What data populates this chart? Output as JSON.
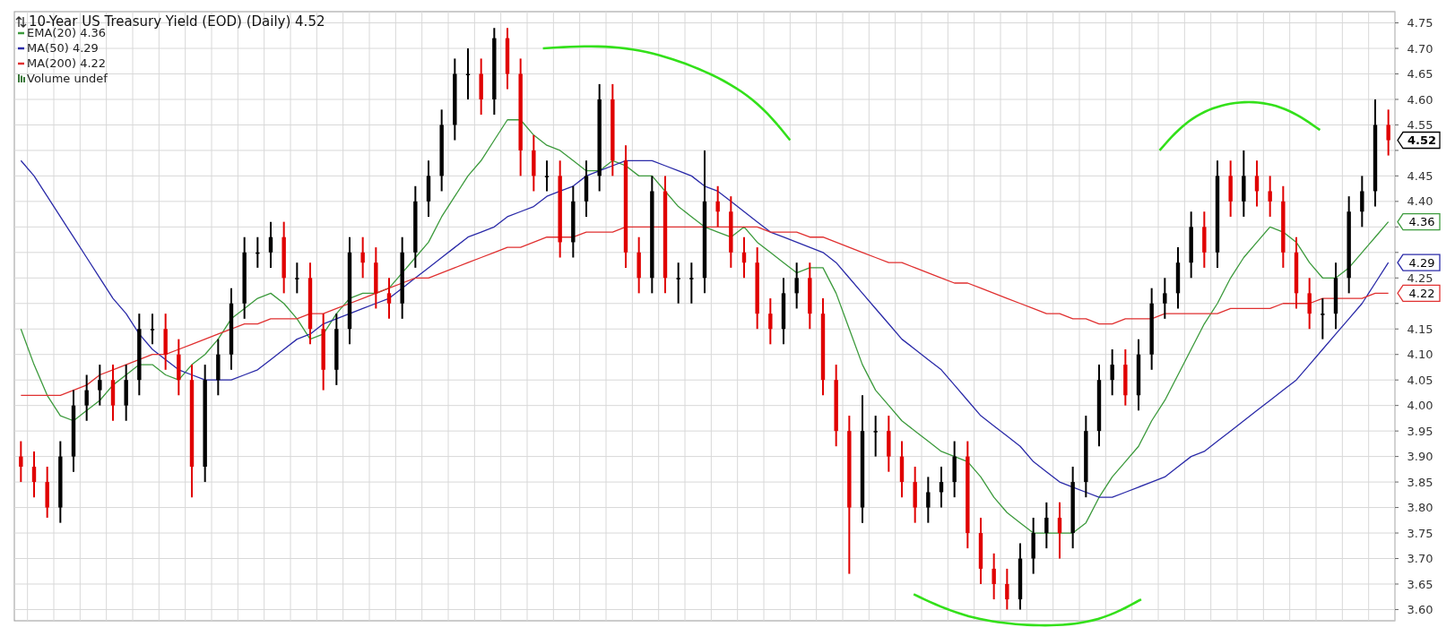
{
  "chart_data": {
    "type": "candlestick",
    "title": "10-Year US Treasury Yield (EOD) (Daily) 4.52",
    "categories": [
      null,
      null,
      null,
      null,
      null,
      null,
      null,
      null,
      null,
      null,
      null,
      null,
      null,
      null,
      null,
      null,
      null,
      null,
      null,
      null,
      null,
      null,
      null,
      null,
      null,
      null,
      null,
      null,
      null,
      null,
      null,
      null,
      null,
      null,
      null,
      null,
      null,
      null,
      null,
      null,
      null,
      null,
      null,
      null,
      null,
      null,
      null,
      null,
      null,
      null,
      null,
      null,
      null,
      null,
      null,
      null,
      null,
      null,
      null,
      null,
      null,
      null,
      null,
      null,
      null,
      null,
      null,
      null,
      null,
      null,
      null,
      null,
      null,
      null,
      null,
      null,
      null,
      null,
      null,
      null,
      null,
      null,
      null,
      null,
      null,
      null,
      null,
      null,
      null,
      null,
      null,
      null,
      null,
      null,
      null,
      null,
      null,
      null,
      null,
      null,
      null,
      null,
      null,
      null,
      null
    ],
    "ohlc": [
      [
        3.9,
        3.93,
        3.85,
        3.88
      ],
      [
        3.88,
        3.91,
        3.82,
        3.85
      ],
      [
        3.85,
        3.88,
        3.78,
        3.8
      ],
      [
        3.8,
        3.93,
        3.77,
        3.9
      ],
      [
        3.9,
        4.03,
        3.87,
        4.0
      ],
      [
        4.0,
        4.06,
        3.97,
        4.03
      ],
      [
        4.03,
        4.08,
        4.0,
        4.05
      ],
      [
        4.05,
        4.08,
        3.97,
        4.0
      ],
      [
        4.0,
        4.08,
        3.97,
        4.05
      ],
      [
        4.05,
        4.18,
        4.02,
        4.15
      ],
      [
        4.15,
        4.18,
        4.12,
        4.15
      ],
      [
        4.15,
        4.18,
        4.07,
        4.1
      ],
      [
        4.1,
        4.13,
        4.02,
        4.05
      ],
      [
        4.05,
        4.08,
        3.82,
        3.88
      ],
      [
        3.88,
        4.08,
        3.85,
        4.05
      ],
      [
        4.05,
        4.13,
        4.02,
        4.1
      ],
      [
        4.1,
        4.23,
        4.07,
        4.2
      ],
      [
        4.2,
        4.33,
        4.17,
        4.3
      ],
      [
        4.3,
        4.33,
        4.27,
        4.3
      ],
      [
        4.3,
        4.36,
        4.27,
        4.33
      ],
      [
        4.33,
        4.36,
        4.22,
        4.25
      ],
      [
        4.25,
        4.28,
        4.22,
        4.25
      ],
      [
        4.25,
        4.28,
        4.12,
        4.15
      ],
      [
        4.15,
        4.18,
        4.03,
        4.07
      ],
      [
        4.07,
        4.18,
        4.04,
        4.15
      ],
      [
        4.15,
        4.33,
        4.12,
        4.3
      ],
      [
        4.3,
        4.33,
        4.25,
        4.28
      ],
      [
        4.28,
        4.31,
        4.19,
        4.22
      ],
      [
        4.22,
        4.25,
        4.17,
        4.2
      ],
      [
        4.2,
        4.33,
        4.17,
        4.3
      ],
      [
        4.3,
        4.43,
        4.27,
        4.4
      ],
      [
        4.4,
        4.48,
        4.37,
        4.45
      ],
      [
        4.45,
        4.58,
        4.42,
        4.55
      ],
      [
        4.55,
        4.68,
        4.52,
        4.65
      ],
      [
        4.65,
        4.7,
        4.6,
        4.65
      ],
      [
        4.65,
        4.68,
        4.57,
        4.6
      ],
      [
        4.6,
        4.74,
        4.57,
        4.72
      ],
      [
        4.72,
        4.74,
        4.62,
        4.65
      ],
      [
        4.65,
        4.68,
        4.45,
        4.5
      ],
      [
        4.5,
        4.53,
        4.42,
        4.45
      ],
      [
        4.45,
        4.48,
        4.42,
        4.45
      ],
      [
        4.45,
        4.48,
        4.29,
        4.32
      ],
      [
        4.32,
        4.43,
        4.29,
        4.4
      ],
      [
        4.4,
        4.48,
        4.37,
        4.45
      ],
      [
        4.45,
        4.63,
        4.42,
        4.6
      ],
      [
        4.6,
        4.63,
        4.45,
        4.48
      ],
      [
        4.48,
        4.51,
        4.27,
        4.3
      ],
      [
        4.3,
        4.33,
        4.22,
        4.25
      ],
      [
        4.25,
        4.45,
        4.22,
        4.42
      ],
      [
        4.42,
        4.45,
        4.22,
        4.25
      ],
      [
        4.25,
        4.28,
        4.2,
        4.25
      ],
      [
        4.25,
        4.28,
        4.2,
        4.25
      ],
      [
        4.25,
        4.5,
        4.22,
        4.4
      ],
      [
        4.4,
        4.43,
        4.35,
        4.38
      ],
      [
        4.38,
        4.41,
        4.27,
        4.3
      ],
      [
        4.3,
        4.33,
        4.25,
        4.28
      ],
      [
        4.28,
        4.31,
        4.15,
        4.18
      ],
      [
        4.18,
        4.21,
        4.12,
        4.15
      ],
      [
        4.15,
        4.25,
        4.12,
        4.22
      ],
      [
        4.22,
        4.28,
        4.19,
        4.25
      ],
      [
        4.25,
        4.28,
        4.15,
        4.18
      ],
      [
        4.18,
        4.21,
        4.02,
        4.05
      ],
      [
        4.05,
        4.08,
        3.92,
        3.95
      ],
      [
        3.95,
        3.98,
        3.67,
        3.8
      ],
      [
        3.8,
        4.02,
        3.77,
        3.95
      ],
      [
        3.95,
        3.98,
        3.9,
        3.95
      ],
      [
        3.95,
        3.98,
        3.87,
        3.9
      ],
      [
        3.9,
        3.93,
        3.82,
        3.85
      ],
      [
        3.85,
        3.88,
        3.77,
        3.8
      ],
      [
        3.8,
        3.86,
        3.77,
        3.83
      ],
      [
        3.83,
        3.88,
        3.8,
        3.85
      ],
      [
        3.85,
        3.93,
        3.82,
        3.9
      ],
      [
        3.9,
        3.93,
        3.72,
        3.75
      ],
      [
        3.75,
        3.78,
        3.65,
        3.68
      ],
      [
        3.68,
        3.71,
        3.62,
        3.65
      ],
      [
        3.65,
        3.68,
        3.6,
        3.62
      ],
      [
        3.62,
        3.73,
        3.6,
        3.7
      ],
      [
        3.7,
        3.78,
        3.67,
        3.75
      ],
      [
        3.75,
        3.81,
        3.72,
        3.78
      ],
      [
        3.78,
        3.81,
        3.7,
        3.75
      ],
      [
        3.75,
        3.88,
        3.72,
        3.85
      ],
      [
        3.85,
        3.98,
        3.82,
        3.95
      ],
      [
        3.95,
        4.08,
        3.92,
        4.05
      ],
      [
        4.05,
        4.11,
        4.02,
        4.08
      ],
      [
        4.08,
        4.11,
        4.0,
        4.02
      ],
      [
        4.02,
        4.13,
        3.99,
        4.1
      ],
      [
        4.1,
        4.23,
        4.07,
        4.2
      ],
      [
        4.2,
        4.25,
        4.17,
        4.22
      ],
      [
        4.22,
        4.31,
        4.19,
        4.28
      ],
      [
        4.28,
        4.38,
        4.25,
        4.35
      ],
      [
        4.35,
        4.38,
        4.27,
        4.3
      ],
      [
        4.3,
        4.48,
        4.27,
        4.45
      ],
      [
        4.45,
        4.48,
        4.37,
        4.4
      ],
      [
        4.4,
        4.5,
        4.37,
        4.45
      ],
      [
        4.45,
        4.48,
        4.39,
        4.42
      ],
      [
        4.42,
        4.45,
        4.37,
        4.4
      ],
      [
        4.4,
        4.43,
        4.27,
        4.3
      ],
      [
        4.3,
        4.33,
        4.19,
        4.22
      ],
      [
        4.22,
        4.25,
        4.15,
        4.18
      ],
      [
        4.18,
        4.21,
        4.13,
        4.18
      ],
      [
        4.18,
        4.28,
        4.15,
        4.25
      ],
      [
        4.25,
        4.41,
        4.22,
        4.38
      ],
      [
        4.38,
        4.45,
        4.35,
        4.42
      ],
      [
        4.42,
        4.6,
        4.39,
        4.55
      ],
      [
        4.55,
        4.58,
        4.49,
        4.52
      ]
    ],
    "colors": [
      "#e00000",
      "#e00000",
      "#e00000",
      "#000000",
      "#000000",
      "#000000",
      "#000000",
      "#e00000",
      "#000000",
      "#000000",
      "#000000",
      "#e00000",
      "#e00000",
      "#e00000",
      "#000000",
      "#000000",
      "#000000",
      "#000000",
      "#000000",
      "#000000",
      "#e00000",
      "#000000",
      "#e00000",
      "#e00000",
      "#000000",
      "#000000",
      "#e00000",
      "#e00000",
      "#e00000",
      "#000000",
      "#000000",
      "#000000",
      "#000000",
      "#000000",
      "#000000",
      "#e00000",
      "#000000",
      "#e00000",
      "#e00000",
      "#e00000",
      "#000000",
      "#e00000",
      "#000000",
      "#000000",
      "#000000",
      "#e00000",
      "#e00000",
      "#e00000",
      "#000000",
      "#e00000",
      "#000000",
      "#000000",
      "#000000",
      "#e00000",
      "#e00000",
      "#e00000",
      "#e00000",
      "#e00000",
      "#000000",
      "#000000",
      "#e00000",
      "#e00000",
      "#e00000",
      "#e00000",
      "#000000",
      "#000000",
      "#e00000",
      "#e00000",
      "#e00000",
      "#000000",
      "#000000",
      "#000000",
      "#e00000",
      "#e00000",
      "#e00000",
      "#e00000",
      "#000000",
      "#000000",
      "#000000",
      "#e00000",
      "#000000",
      "#000000",
      "#000000",
      "#000000",
      "#e00000",
      "#000000",
      "#000000",
      "#000000",
      "#000000",
      "#000000",
      "#e00000",
      "#000000",
      "#e00000",
      "#000000",
      "#e00000",
      "#e00000",
      "#e00000",
      "#e00000",
      "#e00000",
      "#000000",
      "#000000",
      "#000000",
      "#000000",
      "#000000",
      "#e00000"
    ],
    "series": [
      {
        "name": "EMA(20) 4.36",
        "type": "line",
        "color": "#3c9a3c",
        "values": [
          4.15,
          4.08,
          4.02,
          3.98,
          3.97,
          3.99,
          4.01,
          4.04,
          4.06,
          4.08,
          4.08,
          4.06,
          4.05,
          4.08,
          4.1,
          4.13,
          4.17,
          4.19,
          4.21,
          4.22,
          4.2,
          4.17,
          4.13,
          4.14,
          4.18,
          4.21,
          4.22,
          4.22,
          4.23,
          4.26,
          4.29,
          4.32,
          4.37,
          4.41,
          4.45,
          4.48,
          4.52,
          4.56,
          4.56,
          4.53,
          4.51,
          4.5,
          4.48,
          4.46,
          4.46,
          4.48,
          4.47,
          4.45,
          4.45,
          4.42,
          4.39,
          4.37,
          4.35,
          4.34,
          4.33,
          4.35,
          4.32,
          4.3,
          4.28,
          4.26,
          4.27,
          4.27,
          4.22,
          4.15,
          4.08,
          4.03,
          4.0,
          3.97,
          3.95,
          3.93,
          3.91,
          3.9,
          3.89,
          3.86,
          3.82,
          3.79,
          3.77,
          3.75,
          3.75,
          3.75,
          3.75,
          3.77,
          3.82,
          3.86,
          3.89,
          3.92,
          3.97,
          4.01,
          4.06,
          4.11,
          4.16,
          4.2,
          4.25,
          4.29,
          4.32,
          4.35,
          4.34,
          4.32,
          4.28,
          4.25,
          4.25,
          4.27,
          4.3,
          4.33,
          4.36
        ]
      },
      {
        "name": "MA(50) 4.29",
        "type": "line",
        "color": "#2a2aa8",
        "values": [
          4.48,
          4.45,
          4.41,
          4.37,
          4.33,
          4.29,
          4.25,
          4.21,
          4.18,
          4.14,
          4.11,
          4.09,
          4.07,
          4.06,
          4.05,
          4.05,
          4.05,
          4.06,
          4.07,
          4.09,
          4.11,
          4.13,
          4.14,
          4.16,
          4.17,
          4.18,
          4.19,
          4.2,
          4.21,
          4.23,
          4.25,
          4.27,
          4.29,
          4.31,
          4.33,
          4.34,
          4.35,
          4.37,
          4.38,
          4.39,
          4.41,
          4.42,
          4.43,
          4.45,
          4.46,
          4.47,
          4.48,
          4.48,
          4.48,
          4.47,
          4.46,
          4.45,
          4.43,
          4.42,
          4.4,
          4.38,
          4.36,
          4.34,
          4.33,
          4.32,
          4.31,
          4.3,
          4.28,
          4.25,
          4.22,
          4.19,
          4.16,
          4.13,
          4.11,
          4.09,
          4.07,
          4.04,
          4.01,
          3.98,
          3.96,
          3.94,
          3.92,
          3.89,
          3.87,
          3.85,
          3.84,
          3.83,
          3.82,
          3.82,
          3.83,
          3.84,
          3.85,
          3.86,
          3.88,
          3.9,
          3.91,
          3.93,
          3.95,
          3.97,
          3.99,
          4.01,
          4.03,
          4.05,
          4.08,
          4.11,
          4.14,
          4.17,
          4.2,
          4.24,
          4.28
        ]
      },
      {
        "name": "MA(200) 4.22",
        "type": "line",
        "color": "#e03030",
        "values": [
          4.02,
          4.02,
          4.02,
          4.02,
          4.03,
          4.04,
          4.06,
          4.07,
          4.08,
          4.09,
          4.1,
          4.1,
          4.11,
          4.12,
          4.13,
          4.14,
          4.15,
          4.16,
          4.16,
          4.17,
          4.17,
          4.17,
          4.18,
          4.18,
          4.19,
          4.2,
          4.21,
          4.22,
          4.23,
          4.24,
          4.25,
          4.25,
          4.26,
          4.27,
          4.28,
          4.29,
          4.3,
          4.31,
          4.31,
          4.32,
          4.33,
          4.33,
          4.33,
          4.34,
          4.34,
          4.34,
          4.35,
          4.35,
          4.35,
          4.35,
          4.35,
          4.35,
          4.35,
          4.35,
          4.35,
          4.35,
          4.35,
          4.34,
          4.34,
          4.34,
          4.33,
          4.33,
          4.32,
          4.31,
          4.3,
          4.29,
          4.28,
          4.28,
          4.27,
          4.26,
          4.25,
          4.24,
          4.24,
          4.23,
          4.22,
          4.21,
          4.2,
          4.19,
          4.18,
          4.18,
          4.17,
          4.17,
          4.16,
          4.16,
          4.17,
          4.17,
          4.17,
          4.18,
          4.18,
          4.18,
          4.18,
          4.18,
          4.19,
          4.19,
          4.19,
          4.19,
          4.2,
          4.2,
          4.2,
          4.21,
          4.21,
          4.21,
          4.21,
          4.22,
          4.22
        ]
      }
    ],
    "ylim": [
      3.578,
      4.772
    ],
    "yticks": [
      {
        "value": 3.6,
        "label": "3.60"
      },
      {
        "value": 3.65,
        "label": "3.65"
      },
      {
        "value": 3.7,
        "label": "3.70"
      },
      {
        "value": 3.75,
        "label": "3.75"
      },
      {
        "value": 3.8,
        "label": "3.80"
      },
      {
        "value": 3.85,
        "label": "3.85"
      },
      {
        "value": 3.9,
        "label": "3.90"
      },
      {
        "value": 3.95,
        "label": "3.95"
      },
      {
        "value": 4.0,
        "label": "4.00"
      },
      {
        "value": 4.05,
        "label": "4.05"
      },
      {
        "value": 4.1,
        "label": "4.10"
      },
      {
        "value": 4.15,
        "label": "4.15"
      },
      {
        "value": 4.2,
        "label": null
      },
      {
        "value": 4.25,
        "label": "4.25"
      },
      {
        "value": 4.3,
        "label": null
      },
      {
        "value": 4.35,
        "label": null
      },
      {
        "value": 4.4,
        "label": "4.40"
      },
      {
        "value": 4.45,
        "label": "4.45"
      },
      {
        "value": 4.5,
        "label": null
      },
      {
        "value": 4.55,
        "label": "4.55"
      },
      {
        "value": 4.6,
        "label": "4.60"
      },
      {
        "value": 4.65,
        "label": "4.65"
      },
      {
        "value": 4.7,
        "label": "4.70"
      },
      {
        "value": 4.75,
        "label": "4.75"
      }
    ],
    "annotations": [
      "Volume undef",
      "4.52",
      "4.36",
      "4.29",
      "4.22"
    ],
    "grid": true,
    "legend": "top left"
  }
}
